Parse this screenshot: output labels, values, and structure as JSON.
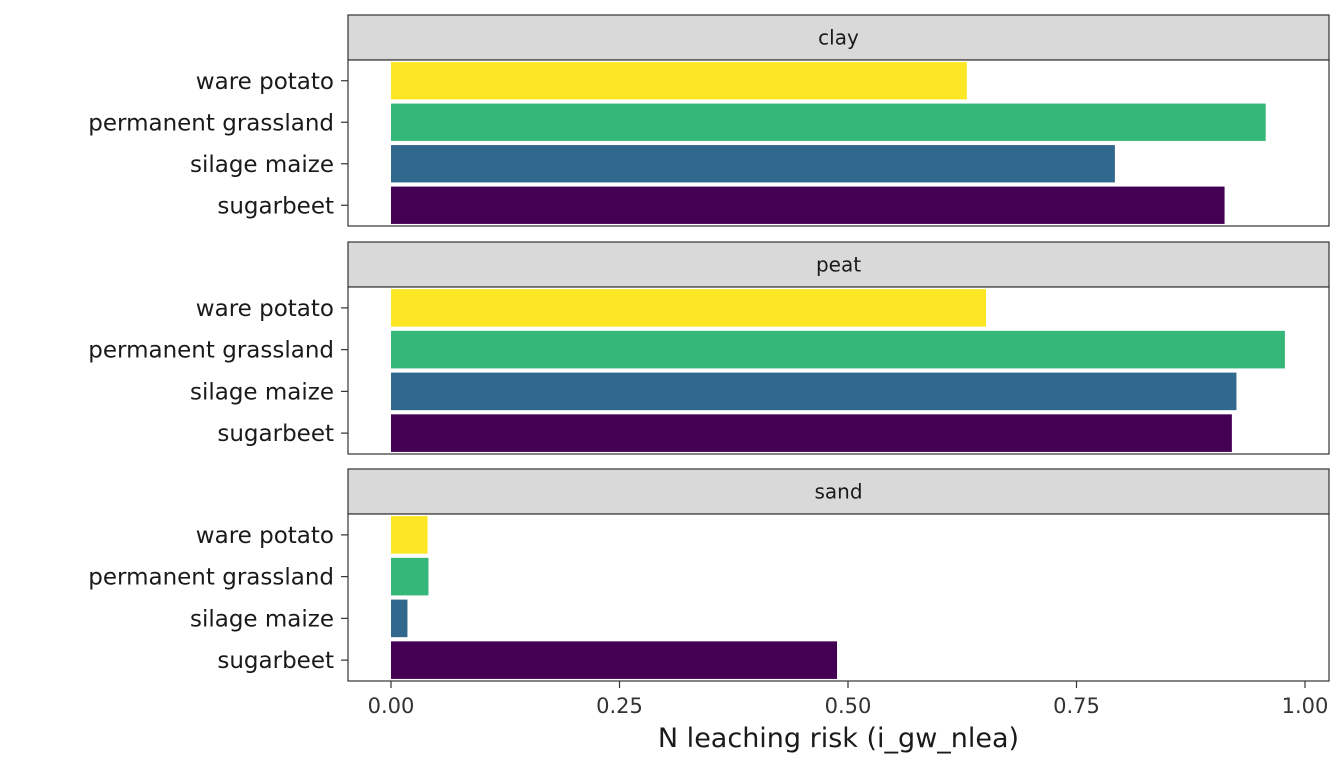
{
  "chart_data": {
    "type": "bar",
    "orientation": "horizontal",
    "facet_by": "soil",
    "panels": [
      {
        "label": "clay",
        "categories": [
          "ware potato",
          "permanent grassland",
          "silage maize",
          "sugarbeet"
        ],
        "values": [
          0.63,
          0.957,
          0.792,
          0.912
        ]
      },
      {
        "label": "peat",
        "categories": [
          "ware potato",
          "permanent grassland",
          "silage maize",
          "sugarbeet"
        ],
        "values": [
          0.651,
          0.978,
          0.925,
          0.92
        ]
      },
      {
        "label": "sand",
        "categories": [
          "ware potato",
          "permanent grassland",
          "silage maize",
          "sugarbeet"
        ],
        "values": [
          0.04,
          0.041,
          0.018,
          0.488
        ]
      }
    ],
    "category_colors": {
      "ware potato": "#FDE725",
      "permanent grassland": "#35B779",
      "silage maize": "#31688E",
      "sugarbeet": "#440154"
    },
    "xlabel": "N leaching risk (i_gw_nlea)",
    "ylabel": "",
    "x_ticks": [
      "0.00",
      "0.25",
      "0.50",
      "0.75",
      "1.00"
    ],
    "x_tick_values": [
      0,
      0.25,
      0.5,
      0.75,
      1.0
    ],
    "xlim": [
      -0.048,
      1.025
    ],
    "grid": false,
    "legend": "none",
    "colors": {
      "strip_background": "#D9D9D9",
      "panel_border": "#333333",
      "background": "#FFFFFF"
    }
  }
}
